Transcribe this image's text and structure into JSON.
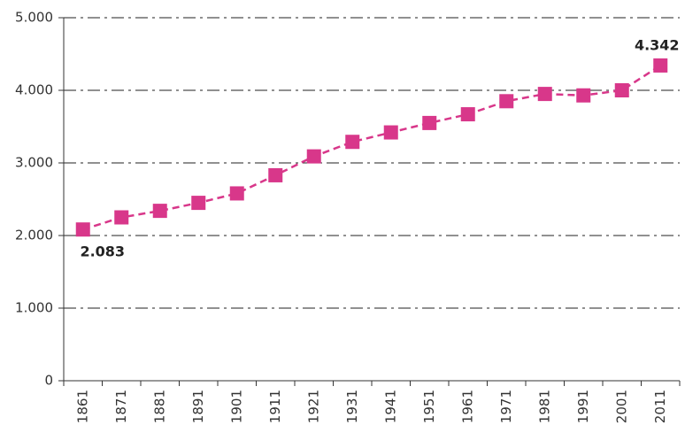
{
  "chart_data": {
    "type": "line",
    "categories": [
      "1861",
      "1871",
      "1881",
      "1891",
      "1901",
      "1911",
      "1921",
      "1931",
      "1941",
      "1951",
      "1961",
      "1971",
      "1981",
      "1991",
      "2001",
      "2011"
    ],
    "series": [
      {
        "color": "#d8378a",
        "values": [
          2083,
          2250,
          2340,
          2450,
          2580,
          2830,
          3090,
          3290,
          3420,
          3550,
          3670,
          3850,
          3950,
          3930,
          4000,
          4342
        ],
        "value_labels": [
          "2.083",
          null,
          null,
          null,
          null,
          null,
          null,
          null,
          null,
          null,
          null,
          null,
          null,
          null,
          null,
          "4.342"
        ]
      }
    ],
    "ylim": [
      0,
      5000
    ],
    "yticks": [
      0,
      {
        "value": 1000,
        "label": "1.000"
      },
      {
        "value": 2000,
        "label": "2.000"
      },
      {
        "value": 3000,
        "label": "3.000"
      },
      {
        "value": 4000,
        "label": "4.000"
      },
      {
        "value": 5000,
        "label": "5.000"
      }
    ],
    "grid": true
  }
}
